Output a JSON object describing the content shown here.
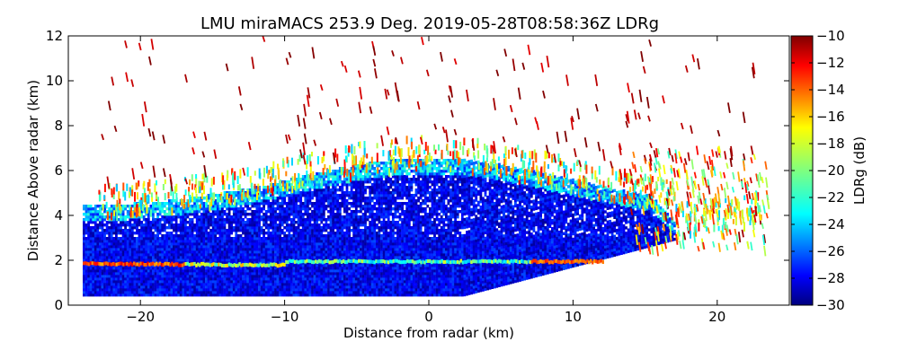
{
  "chart_data": {
    "type": "heatmap",
    "title": "LMU miraMACS 253.9 Deg. 2019-05-28T08:58:36Z  LDRg",
    "xlabel": "Distance from radar (km)",
    "ylabel": "Distance Above radar  (km)",
    "xlim": [
      -25,
      25
    ],
    "ylim": [
      0,
      12
    ],
    "xticks": [
      -20,
      -10,
      0,
      10,
      20
    ],
    "yticks": [
      0,
      2,
      4,
      6,
      8,
      10,
      12
    ],
    "colorbar": {
      "label": "LDRg (dB)",
      "min": -30,
      "max": -10,
      "ticks": [
        -10,
        -12,
        -14,
        -16,
        -18,
        -20,
        -22,
        -24,
        -26,
        -28,
        -30
      ],
      "colormap": "jet"
    },
    "colormap_stops": [
      "#00007f",
      "#0000ff",
      "#007fff",
      "#00ffff",
      "#7fff7f",
      "#ffff00",
      "#ff7f00",
      "#ff0000",
      "#7f0000"
    ],
    "description_regions": {
      "melting_layer_height_km": 1.9,
      "dense_cloud_top_km": 6.5,
      "scan_azimuth_deg": 253.9
    }
  }
}
